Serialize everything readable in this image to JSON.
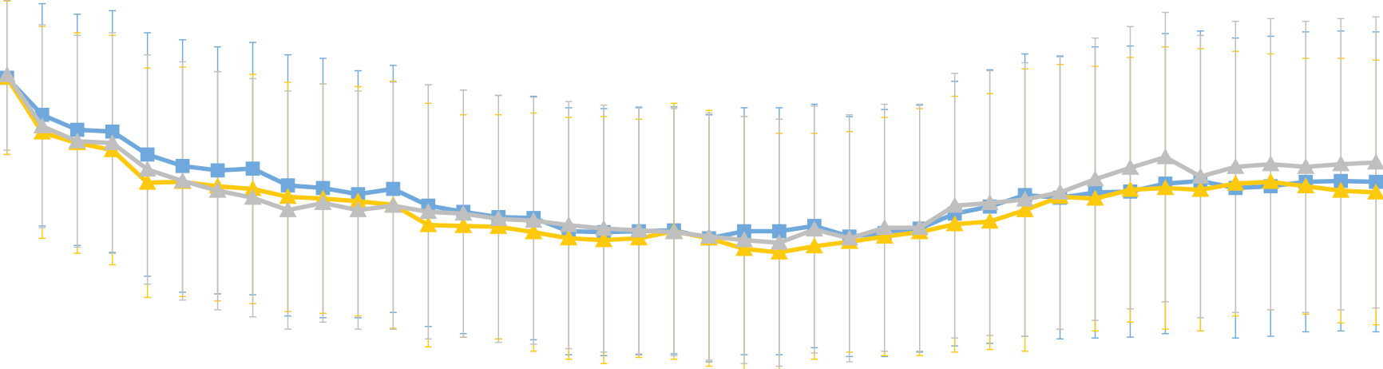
{
  "chart_data": {
    "type": "line",
    "categories": [
      null,
      null,
      null,
      null,
      null,
      null,
      null,
      null,
      null,
      null,
      null,
      null,
      null,
      null,
      null,
      null,
      null,
      null,
      null,
      null,
      null,
      null,
      null,
      null,
      null,
      null,
      null,
      null,
      null,
      null,
      null,
      null,
      null,
      null,
      null,
      null,
      null,
      null,
      null,
      null
    ],
    "ylim": [
      0,
      418
    ],
    "series": [
      {
        "color": "#6fa8dc",
        "marker": "square",
        "values": [
          330,
          288,
          271,
          269,
          243,
          230,
          225,
          227,
          208,
          205,
          198,
          204,
          185,
          178,
          172,
          171,
          156,
          155,
          156,
          157,
          148,
          156,
          156,
          162,
          150,
          154,
          159,
          176,
          184,
          197,
          194,
          200,
          201,
          210,
          213,
          205,
          207,
          212,
          213,
          212
        ],
        "errors": [
          87,
          126,
          131,
          137,
          138,
          143,
          140,
          143,
          148,
          147,
          140,
          140,
          137,
          138,
          138,
          138,
          140,
          140,
          140,
          140,
          140,
          140,
          140,
          138,
          136,
          140,
          140,
          150,
          155,
          160,
          160,
          165,
          165,
          170,
          170,
          170,
          170,
          170,
          170,
          170
        ]
      },
      {
        "color": "#ffc90e",
        "marker": "triangle",
        "values": [
          330,
          268,
          256,
          248,
          211,
          212,
          207,
          204,
          195,
          193,
          190,
          186,
          163,
          162,
          161,
          155,
          148,
          146,
          148,
          156,
          148,
          136,
          132,
          139,
          144,
          150,
          155,
          164,
          167,
          180,
          195,
          193,
          203,
          205,
          203,
          210,
          212,
          207,
          202,
          200
        ],
        "errors": [
          87,
          120,
          125,
          130,
          130,
          130,
          130,
          130,
          130,
          130,
          130,
          140,
          138,
          126,
          127,
          135,
          137,
          140,
          135,
          145,
          145,
          150,
          135,
          128,
          125,
          135,
          140,
          145,
          145,
          160,
          150,
          150,
          150,
          160,
          160,
          150,
          145,
          145,
          150,
          150
        ]
      },
      {
        "color": "#bfbfbf",
        "marker": "triangle",
        "values": [
          333,
          275,
          258,
          256,
          226,
          213,
          202,
          194,
          180,
          188,
          180,
          185,
          178,
          176,
          170,
          168,
          163,
          159,
          157,
          155,
          150,
          146,
          143,
          158,
          148,
          160,
          160,
          185,
          188,
          192,
          200,
          215,
          228,
          240,
          218,
          229,
          232,
          229,
          232,
          234
        ],
        "errors": [
          85,
          115,
          120,
          125,
          130,
          135,
          135,
          135,
          135,
          135,
          135,
          140,
          144,
          140,
          140,
          140,
          140,
          140,
          140,
          140,
          140,
          140,
          140,
          140,
          140,
          140,
          140,
          150,
          150,
          155,
          155,
          160,
          160,
          164,
          160,
          165,
          165,
          165,
          165,
          165
        ]
      }
    ]
  }
}
